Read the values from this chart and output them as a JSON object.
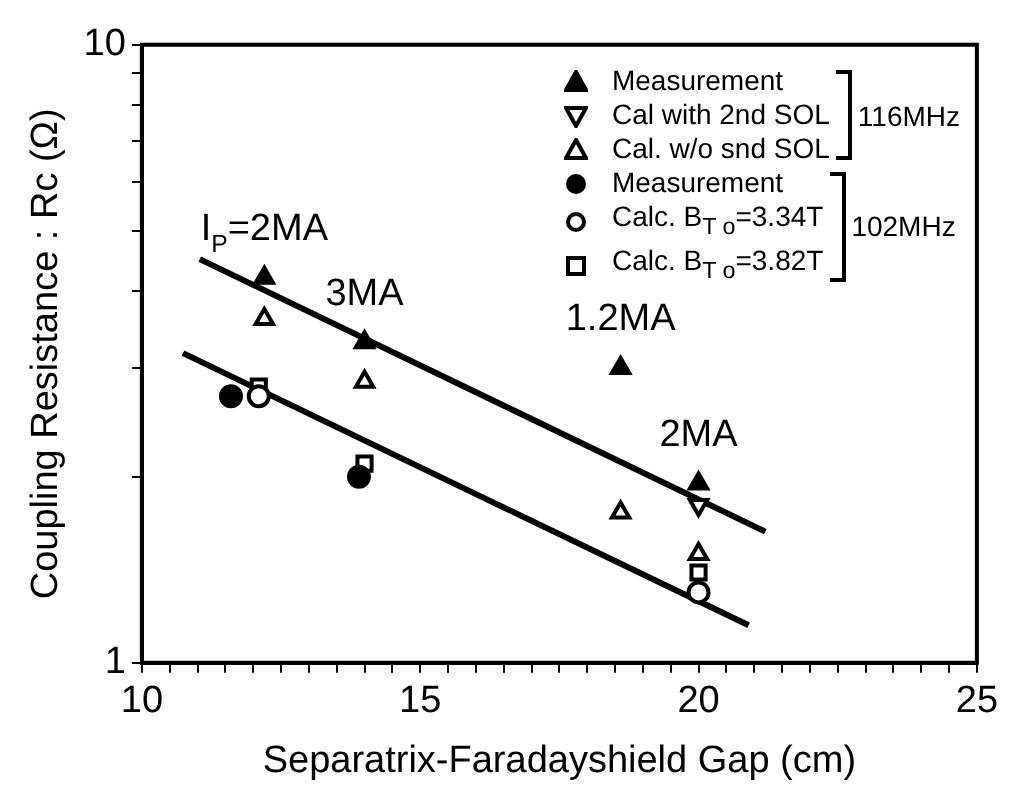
{
  "chart_data": {
    "type": "scatter",
    "xlabel": "Separatrix-Faradayshield Gap (cm)",
    "ylabel": "Coupling Resistance : Rc (Ω)",
    "log": "y",
    "xlim": [
      10,
      25
    ],
    "ylim": [
      1,
      10
    ],
    "xticks": [
      10,
      {
        "value": 10.5,
        "label": null
      },
      {
        "value": 11,
        "label": null
      },
      {
        "value": 11.5,
        "label": null
      },
      {
        "value": 12,
        "label": null
      },
      {
        "value": 12.5,
        "label": null
      },
      {
        "value": 13,
        "label": null
      },
      {
        "value": 13.5,
        "label": null
      },
      {
        "value": 14,
        "label": null
      },
      {
        "value": 14.5,
        "label": null
      },
      15,
      {
        "value": 15.5,
        "label": null
      },
      {
        "value": 16,
        "label": null
      },
      {
        "value": 16.5,
        "label": null
      },
      {
        "value": 17,
        "label": null
      },
      {
        "value": 17.5,
        "label": null
      },
      {
        "value": 18,
        "label": null
      },
      {
        "value": 18.5,
        "label": null
      },
      {
        "value": 19,
        "label": null
      },
      {
        "value": 19.5,
        "label": null
      },
      20,
      {
        "value": 20.5,
        "label": null
      },
      {
        "value": 21,
        "label": null
      },
      {
        "value": 21.5,
        "label": null
      },
      {
        "value": 22,
        "label": null
      },
      {
        "value": 22.5,
        "label": null
      },
      {
        "value": 23,
        "label": null
      },
      {
        "value": 23.5,
        "label": null
      },
      {
        "value": 24,
        "label": null
      },
      {
        "value": 24.5,
        "label": null
      },
      25
    ],
    "yticks": [
      1,
      {
        "value": 2,
        "label": null
      },
      {
        "value": 3,
        "label": null
      },
      {
        "value": 4,
        "label": null
      },
      {
        "value": 5,
        "label": null
      },
      {
        "value": 6,
        "label": null
      },
      {
        "value": 7,
        "label": null
      },
      {
        "value": 8,
        "label": null
      },
      {
        "value": 9,
        "label": null
      },
      10
    ],
    "grid": false,
    "legend": "top right",
    "series": [
      {
        "name": "Measurement",
        "color": "#000000",
        "marker": "triangle",
        "x": [
          12.2,
          14.0,
          18.6,
          20.0
        ],
        "values": [
          4.2,
          3.3,
          3.0,
          1.95
        ]
      },
      {
        "name": "Cal with 2nd SOL",
        "color": "#ffffff",
        "marker": "triangle-down",
        "x": [
          20.0
        ],
        "values": [
          1.8
        ]
      },
      {
        "name": "Cal. w/o snd SOL",
        "color": "#ffffff",
        "marker": "triangle",
        "x": [
          12.2,
          14.0,
          18.6,
          20.0
        ],
        "values": [
          3.6,
          2.85,
          1.75,
          1.5
        ]
      },
      {
        "name": "Measurement",
        "color": "#000000",
        "marker": "circle",
        "x": [
          11.6,
          13.9
        ],
        "values": [
          2.7,
          2.0
        ]
      },
      {
        "name": "Calc. B$_{T o}$=3.34T",
        "color": "#ffffff",
        "marker": "circle",
        "x": [
          12.1,
          20.0
        ],
        "values": [
          2.7,
          1.3
        ]
      },
      {
        "name": "Calc. B$_{T o}$=3.82T",
        "color": "#ffffff",
        "marker": "square",
        "x": [
          12.1,
          14.0,
          20.0
        ],
        "values": [
          2.8,
          2.1,
          1.4
        ]
      },
      {
        "type": "line",
        "color": "#000000",
        "marker": "none",
        "x": [
          11.04,
          21.2
        ],
        "values": [
          4.5,
          1.63
        ]
      },
      {
        "type": "line",
        "color": "#000000",
        "marker": "none",
        "x": [
          10.74,
          20.9
        ],
        "values": [
          3.17,
          1.15
        ]
      }
    ],
    "annotations": [
      "116MHz",
      "102MHz",
      {
        "text": "I$_{P}$=2MA",
        "x": 12.2,
        "y": 4.2
      },
      {
        "text": "3MA",
        "x": 14.0,
        "y": 3.3
      },
      {
        "text": "1.2MA",
        "x": 18.6,
        "y": 3.0
      },
      {
        "text": "2MA",
        "x": 20.0,
        "y": 1.95
      }
    ]
  }
}
